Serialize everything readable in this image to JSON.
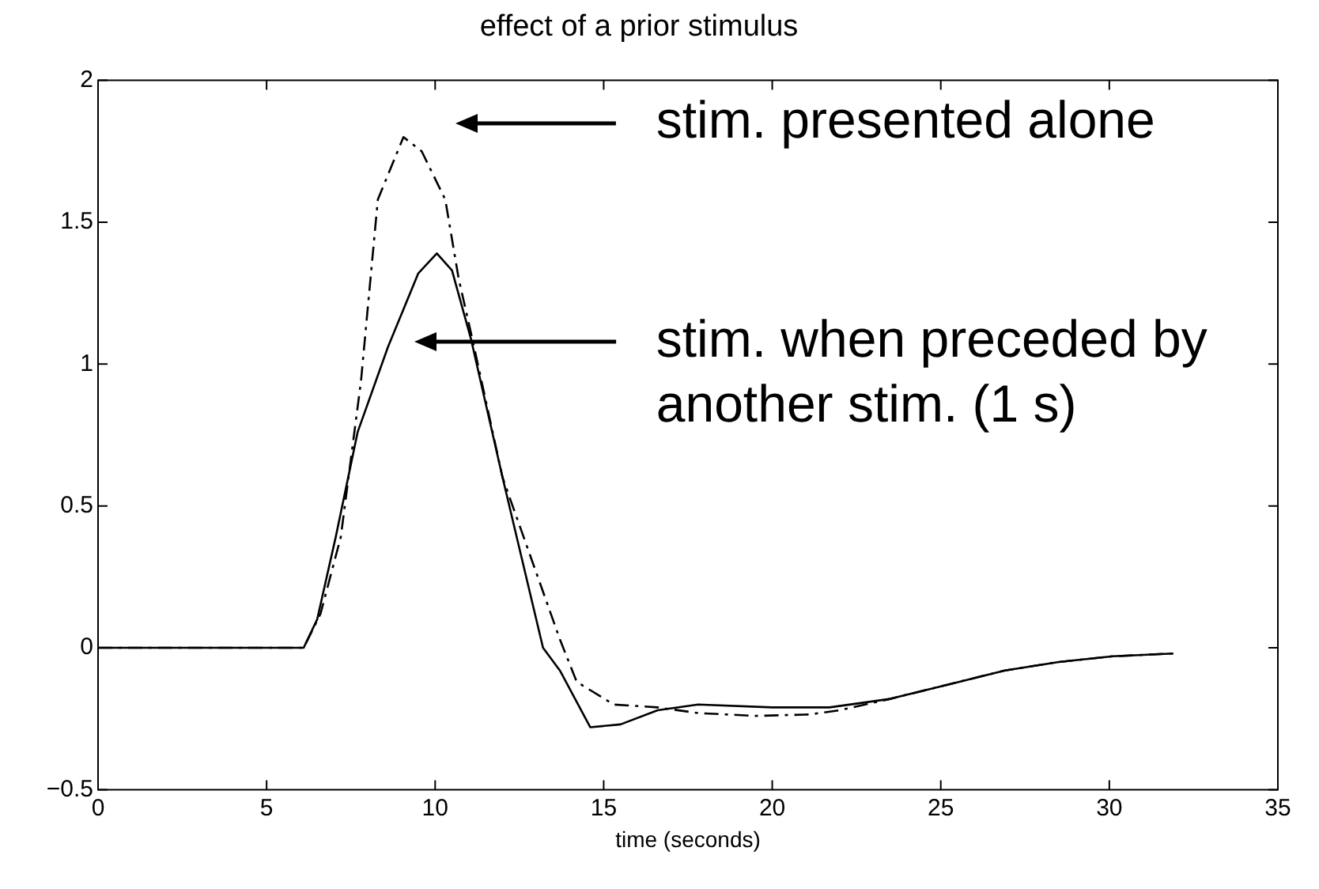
{
  "chart_data": {
    "type": "line",
    "title": "effect of a prior stimulus",
    "xlabel": "time (seconds)",
    "xlim": [
      0,
      35
    ],
    "xticks": [
      0,
      5,
      10,
      15,
      20,
      25,
      30,
      35
    ],
    "ylim": [
      -0.5,
      2
    ],
    "yticks": [
      {
        "value": -0.5,
        "label": "−0.5"
      },
      0,
      0.5,
      1,
      1.5,
      2
    ],
    "grid": false,
    "legend": false,
    "marker": "none",
    "series": [
      {
        "color": "#000000",
        "line_style": "dashed",
        "x": [
          0,
          6.1,
          6.6,
          7.2,
          7.8,
          8.3,
          9.06,
          9.6,
          10.3,
          10.7,
          11.1,
          12,
          13.7,
          14.2,
          15.3,
          16.6,
          17.8,
          19.5,
          21.1,
          22,
          23.5,
          25.2,
          26.9,
          28.5,
          30.1,
          31.9
        ],
        "values": [
          0,
          0,
          0.12,
          0.39,
          0.94,
          1.58,
          1.8,
          1.75,
          1.58,
          1.3,
          1.09,
          0.6,
          0.03,
          -0.12,
          -0.2,
          -0.21,
          -0.23,
          -0.24,
          -0.235,
          -0.22,
          -0.18,
          -0.13,
          -0.08,
          -0.05,
          -0.03,
          -0.02
        ]
      },
      {
        "color": "#000000",
        "line_style": "solid",
        "x": [
          0,
          6.1,
          6.5,
          7.05,
          7.7,
          8.6,
          9.5,
          10.05,
          10.5,
          11.06,
          12,
          13.2,
          13.7,
          14.6,
          15.5,
          16.6,
          17.8,
          20,
          21.7,
          23.5,
          25.2,
          26.9,
          28.5,
          30.1,
          31.9
        ],
        "values": [
          0,
          0,
          0.1,
          0.39,
          0.76,
          1.06,
          1.32,
          1.39,
          1.33,
          1.09,
          0.6,
          0,
          -0.08,
          -0.28,
          -0.27,
          -0.22,
          -0.2,
          -0.21,
          -0.21,
          -0.18,
          -0.13,
          -0.08,
          -0.05,
          -0.03,
          -0.02
        ]
      }
    ],
    "annotations": [
      "stim. presented alone",
      "stim. when preceded by another stim. (1 s)"
    ]
  }
}
